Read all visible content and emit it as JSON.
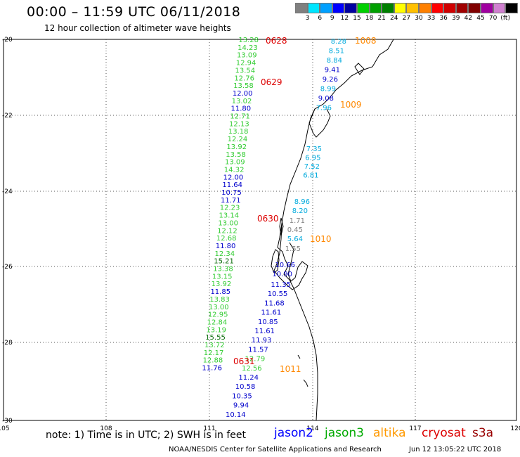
{
  "title": "00:00 – 11:59 UTC 06/11/2018",
  "subtitle": "12 hour collection of altimeter wave heights",
  "legend": {
    "colors": [
      "#808080",
      "#00e5ff",
      "#00a0ff",
      "#0000ff",
      "#0000a0",
      "#00d000",
      "#00a000",
      "#008000",
      "#ffff00",
      "#ffc000",
      "#ff8000",
      "#ff0000",
      "#d00000",
      "#a00000",
      "#800000",
      "#a000a0",
      "#d080d0",
      "#000000"
    ],
    "labels": [
      "3",
      "6",
      "9",
      "12",
      "15",
      "18",
      "21",
      "24",
      "27",
      "30",
      "33",
      "36",
      "39",
      "42",
      "45",
      "70",
      "(ft)"
    ]
  },
  "axes": {
    "lat_labels": [
      "-20",
      "-22",
      "-24",
      "-26",
      "-28",
      "-30"
    ],
    "lon_labels": [
      "105",
      "108",
      "111",
      "114",
      "117",
      "120"
    ]
  },
  "tracks": [
    {
      "sat": "jason3",
      "color": "#33cc33",
      "values": [
        "13.28",
        "14.23",
        "13.09",
        "12.94",
        "13.54",
        "12.76",
        "13.58"
      ]
    },
    {
      "sat": "jason2",
      "color": "#0000cc",
      "values": [
        "12.00"
      ]
    },
    {
      "sat": "jason3",
      "color": "#33cc33",
      "values": [
        "13.02"
      ]
    },
    {
      "sat": "jason2",
      "color": "#0000cc",
      "values": [
        "11.80"
      ]
    },
    {
      "sat": "jason3",
      "color": "#33cc33",
      "values": [
        "12.71",
        "12.13",
        "13.18",
        "12.24",
        "13.92",
        "13.58",
        "13.09",
        "14.32"
      ]
    },
    {
      "sat": "jason2",
      "color": "#0000cc",
      "values": [
        "12.00",
        "11.64",
        "10.75",
        "11.71"
      ]
    },
    {
      "sat": "jason3",
      "color": "#33cc33",
      "values": [
        "12.23",
        "13.14",
        "13.00",
        "12.12",
        "12.68"
      ]
    },
    {
      "sat": "jason2",
      "color": "#0000cc",
      "values": [
        "11.80"
      ]
    },
    {
      "sat": "jason3",
      "color": "#33cc33",
      "values": [
        "12.34"
      ]
    },
    {
      "sat": "jason3dark",
      "color": "#006600",
      "values": [
        "15.21"
      ]
    },
    {
      "sat": "jason3",
      "color": "#33cc33",
      "values": [
        "13.38",
        "13.15",
        "13.92"
      ]
    },
    {
      "sat": "jason2",
      "color": "#0000cc",
      "values": [
        "11.85"
      ]
    },
    {
      "sat": "jason3",
      "color": "#33cc33",
      "values": [
        "13.83",
        "13.00",
        "12.95",
        "12.84",
        "13.19"
      ]
    },
    {
      "sat": "jason3dark",
      "color": "#006600",
      "values": [
        "15.55"
      ]
    },
    {
      "sat": "jason3",
      "color": "#33cc33",
      "values": [
        "13.72",
        "12.17",
        "12.88"
      ]
    },
    {
      "sat": "jason2",
      "color": "#0000cc",
      "values": [
        "11.76"
      ]
    }
  ],
  "track_east": {
    "values": [
      {
        "v": "8.28",
        "c": "#00aadd"
      },
      {
        "v": "8.51",
        "c": "#00aadd"
      },
      {
        "v": "8.84",
        "c": "#00aadd"
      },
      {
        "v": "9.41",
        "c": "#0000cc"
      },
      {
        "v": "9.26",
        "c": "#0000cc"
      },
      {
        "v": "8.99",
        "c": "#00aadd"
      },
      {
        "v": "9.08",
        "c": "#0000cc"
      },
      {
        "v": "7.96",
        "c": "#00aadd"
      }
    ]
  },
  "track_mid": {
    "values": [
      {
        "v": "7.35",
        "c": "#00aadd"
      },
      {
        "v": "6.95",
        "c": "#00aadd"
      },
      {
        "v": "7.52",
        "c": "#00aadd"
      },
      {
        "v": "6.81",
        "c": "#00aadd"
      }
    ]
  },
  "track_sb": {
    "values": [
      {
        "v": "8.96",
        "c": "#00aadd"
      },
      {
        "v": "8.20",
        "c": "#00aadd"
      },
      {
        "v": "1.71",
        "c": "#808080"
      },
      {
        "v": "0.45",
        "c": "#808080"
      },
      {
        "v": "5.64",
        "c": "#00aadd"
      },
      {
        "v": "1.55",
        "c": "#808080"
      },
      {
        "v": "10.66",
        "c": "#0000cc"
      },
      {
        "v": "10.90",
        "c": "#0000cc"
      }
    ]
  },
  "track_lower": {
    "values": [
      {
        "v": "11.35",
        "c": "#0000cc"
      },
      {
        "v": "10.55",
        "c": "#0000cc"
      },
      {
        "v": "11.68",
        "c": "#0000cc"
      },
      {
        "v": "11.61",
        "c": "#0000cc"
      },
      {
        "v": "10.85",
        "c": "#0000cc"
      },
      {
        "v": "11.61",
        "c": "#0000cc"
      },
      {
        "v": "11.93",
        "c": "#0000cc"
      },
      {
        "v": "11.57",
        "c": "#0000cc"
      },
      {
        "v": "12.79",
        "c": "#33cc33"
      },
      {
        "v": "12.56",
        "c": "#33cc33"
      },
      {
        "v": "11.24",
        "c": "#0000cc"
      },
      {
        "v": "10.58",
        "c": "#0000cc"
      },
      {
        "v": "10.35",
        "c": "#0000cc"
      },
      {
        "v": "9.94",
        "c": "#0000cc"
      },
      {
        "v": "10.14",
        "c": "#0000cc"
      }
    ]
  },
  "time_tags": [
    {
      "v": "0628",
      "c": "#dd0000"
    },
    {
      "v": "0629",
      "c": "#dd0000"
    },
    {
      "v": "0630",
      "c": "#dd0000"
    },
    {
      "v": "0631",
      "c": "#dd0000"
    },
    {
      "v": "1008",
      "c": "#ff8800"
    },
    {
      "v": "1009",
      "c": "#ff8800"
    },
    {
      "v": "1010",
      "c": "#ff8800"
    },
    {
      "v": "1011",
      "c": "#ff8800"
    }
  ],
  "note": "note: 1) Time is in UTC; 2) SWH is in feet",
  "satellites": [
    {
      "name": "jason2",
      "color": "#0000ff"
    },
    {
      "name": "jason3",
      "color": "#00aa00"
    },
    {
      "name": "altika",
      "color": "#ff9900"
    },
    {
      "name": "cryosat",
      "color": "#dd0000"
    },
    {
      "name": "s3a",
      "color": "#990000"
    }
  ],
  "credit": "NOAA/NESDIS Center for Satellite Applications and Research",
  "stamp": "Jun 12 13:05:22 UTC 2018"
}
